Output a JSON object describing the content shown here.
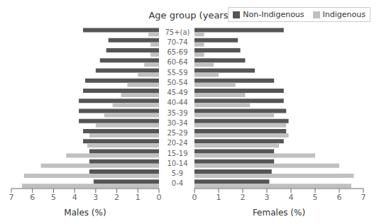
{
  "chart_data": [
    {
      "type": "bar",
      "orientation": "horizontal",
      "title": "Age group (years)",
      "xlabel": "Males (%)",
      "categories": [
        "0-4",
        "5-9",
        "10-14",
        "15-19",
        "20-24",
        "25-29",
        "30-34",
        "35-39",
        "40-44",
        "45-49",
        "50-54",
        "55-59",
        "60-64",
        "65-69",
        "70-74",
        "75+(a)"
      ],
      "series": [
        {
          "name": "Non-Indigenous",
          "color": "#555555",
          "values": [
            3.1,
            3.3,
            3.3,
            3.3,
            3.6,
            3.6,
            3.8,
            3.8,
            3.8,
            3.6,
            3.5,
            3.0,
            2.8,
            2.5,
            2.4,
            3.6
          ]
        },
        {
          "name": "Indigenous",
          "color": "#c0c0c0",
          "values": [
            6.5,
            6.4,
            5.6,
            4.4,
            3.4,
            3.3,
            3.0,
            2.6,
            2.2,
            1.8,
            1.5,
            1.0,
            0.7,
            0.4,
            0.4,
            0.5
          ]
        }
      ],
      "xlim": [
        7,
        0
      ],
      "xticks": [
        7,
        6,
        5,
        4,
        3,
        2,
        1,
        0
      ],
      "grid": false
    },
    {
      "type": "bar",
      "orientation": "horizontal",
      "xlabel": "Females (%)",
      "categories": [
        "0-4",
        "5-9",
        "10-14",
        "15-19",
        "20-24",
        "25-29",
        "30-34",
        "35-39",
        "40-44",
        "45-49",
        "50-54",
        "55-59",
        "60-64",
        "65-69",
        "70-74",
        "75+(a)"
      ],
      "series": [
        {
          "name": "Non-Indigenous",
          "color": "#555555",
          "values": [
            3.1,
            3.2,
            3.3,
            3.3,
            3.7,
            3.8,
            3.9,
            3.8,
            3.7,
            3.7,
            3.3,
            2.5,
            2.1,
            1.9,
            1.8,
            3.7
          ]
        },
        {
          "name": "Indigenous",
          "color": "#c0c0c0",
          "values": [
            6.5,
            6.6,
            6.0,
            5.0,
            3.5,
            3.9,
            3.8,
            3.3,
            2.3,
            2.1,
            1.7,
            1.0,
            0.8,
            0.4,
            0.4,
            0.4
          ]
        }
      ],
      "xlim": [
        0,
        7
      ],
      "xticks": [
        0,
        1,
        2,
        3,
        4,
        5,
        6,
        7
      ],
      "tick_labels": "x",
      "legend": "upper right",
      "grid": false
    }
  ]
}
